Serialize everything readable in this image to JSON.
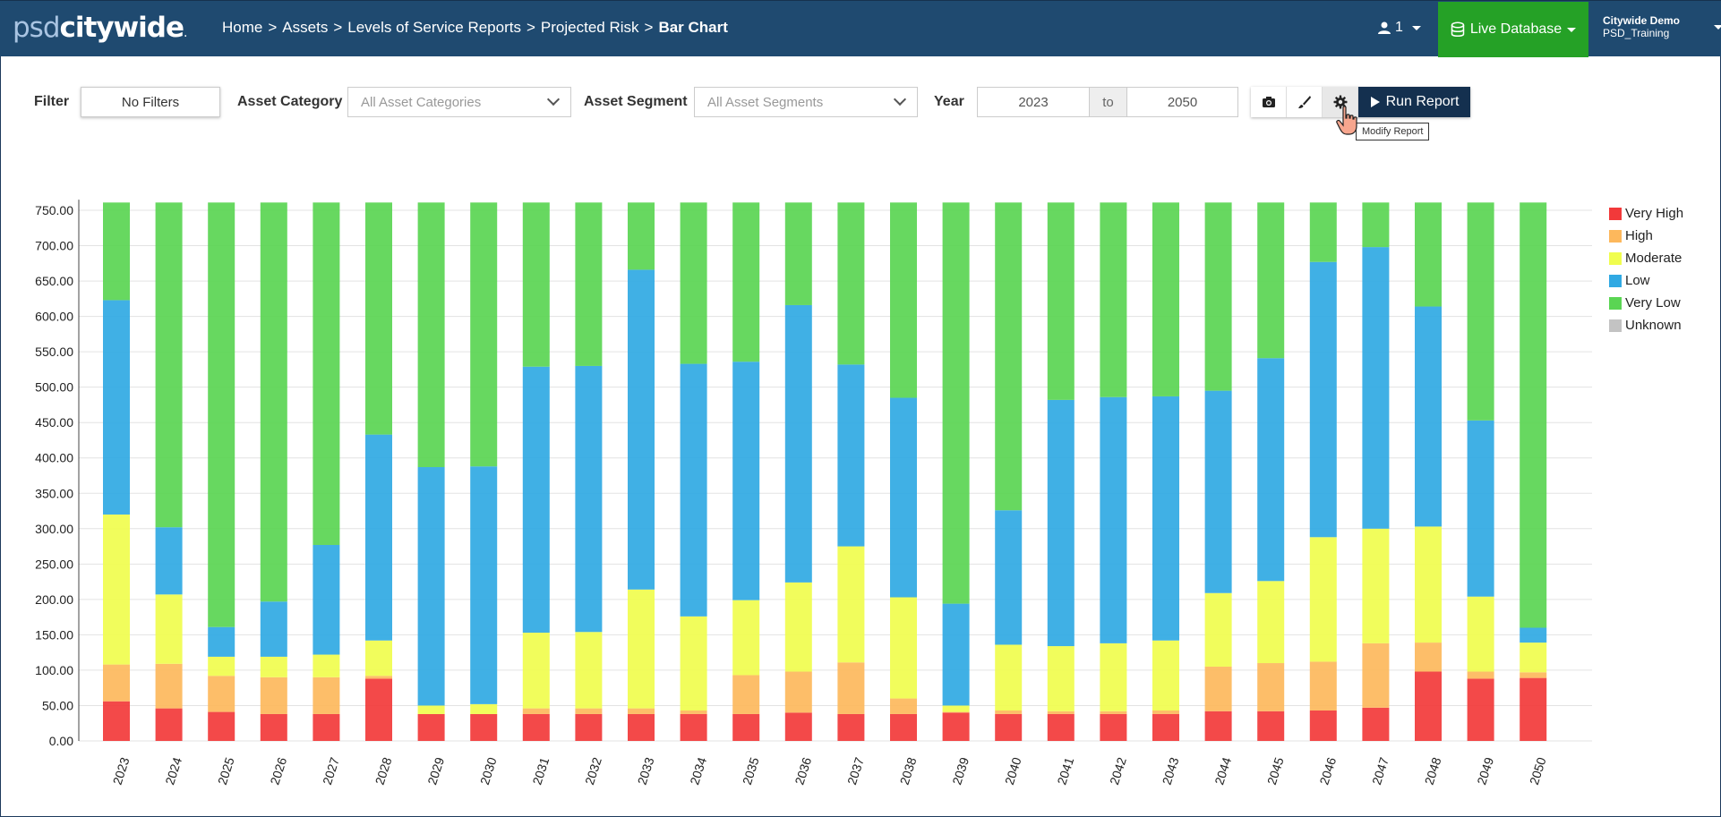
{
  "app": {
    "logo_light": "psd",
    "logo_bold": "citywide"
  },
  "breadcrumb": [
    {
      "label": "Home"
    },
    {
      "label": "Assets"
    },
    {
      "label": "Levels of Service Reports"
    },
    {
      "label": "Projected Risk"
    },
    {
      "label": "Bar Chart"
    }
  ],
  "header": {
    "user_count": "1",
    "database_label": "Live Database",
    "account_name": "Citywide Demo",
    "account_db": "PSD_Training"
  },
  "filters": {
    "filter_label": "Filter",
    "filter_value": "No Filters",
    "category_label": "Asset Category",
    "category_placeholder": "All Asset Categories",
    "segment_label": "Asset Segment",
    "segment_placeholder": "All Asset Segments",
    "year_label": "Year",
    "year_from": "2023",
    "year_to_sep": "to",
    "year_to": "2050",
    "run_label": "Run Report",
    "tooltip": "Modify Report"
  },
  "toolbar_icons": [
    "camera-icon",
    "brush-icon",
    "gear-icon"
  ],
  "chart_data": {
    "type": "bar",
    "stacked": true,
    "title": "",
    "xlabel": "",
    "ylabel": "",
    "ylim": [
      0,
      765
    ],
    "yticks": [
      "0.00",
      "50.00",
      "100.00",
      "150.00",
      "200.00",
      "250.00",
      "300.00",
      "350.00",
      "400.00",
      "450.00",
      "500.00",
      "550.00",
      "600.00",
      "650.00",
      "700.00",
      "750.00"
    ],
    "grid": true,
    "legend_position": "right",
    "categories": [
      "2023",
      "2024",
      "2025",
      "2026",
      "2027",
      "2028",
      "2029",
      "2030",
      "2031",
      "2032",
      "2033",
      "2034",
      "2035",
      "2036",
      "2037",
      "2038",
      "2039",
      "2040",
      "2041",
      "2042",
      "2043",
      "2044",
      "2045",
      "2046",
      "2047",
      "2048",
      "2049",
      "2050"
    ],
    "series": [
      {
        "name": "Very High",
        "color": "#f2393a",
        "values": [
          56,
          46,
          41,
          38,
          38,
          88,
          38,
          38,
          38,
          38,
          38,
          38,
          38,
          40,
          38,
          38,
          40,
          38,
          38,
          38,
          38,
          42,
          42,
          43,
          47,
          98,
          88,
          89
        ]
      },
      {
        "name": "High",
        "color": "#fdb85c",
        "values": [
          52,
          63,
          51,
          52,
          52,
          4,
          0,
          0,
          8,
          8,
          8,
          5,
          55,
          58,
          73,
          22,
          1,
          5,
          4,
          4,
          5,
          63,
          68,
          69,
          91,
          41,
          10,
          8
        ]
      },
      {
        "name": "Moderate",
        "color": "#f0fd4e",
        "values": [
          212,
          98,
          27,
          29,
          32,
          50,
          12,
          14,
          107,
          108,
          168,
          133,
          106,
          126,
          164,
          143,
          9,
          93,
          92,
          96,
          99,
          104,
          116,
          176,
          162,
          164,
          106,
          42
        ]
      },
      {
        "name": "Low",
        "color": "#30a9e3",
        "values": [
          303,
          95,
          42,
          78,
          155,
          291,
          337,
          336,
          376,
          376,
          452,
          357,
          337,
          392,
          257,
          282,
          144,
          190,
          348,
          348,
          345,
          286,
          315,
          389,
          398,
          311,
          249,
          21
        ]
      },
      {
        "name": "Very Low",
        "color": "#5ad553",
        "values": [
          138,
          459,
          600,
          564,
          484,
          328,
          374,
          373,
          232,
          231,
          95,
          228,
          225,
          145,
          229,
          276,
          567,
          435,
          279,
          275,
          274,
          266,
          220,
          84,
          63,
          147,
          308,
          601
        ]
      },
      {
        "name": "Unknown",
        "color": "#c3c3c3",
        "values": [
          0,
          0,
          0,
          0,
          0,
          0,
          0,
          0,
          0,
          0,
          0,
          0,
          0,
          0,
          0,
          0,
          0,
          0,
          0,
          0,
          0,
          0,
          0,
          0,
          0,
          0,
          0,
          0
        ]
      }
    ]
  }
}
